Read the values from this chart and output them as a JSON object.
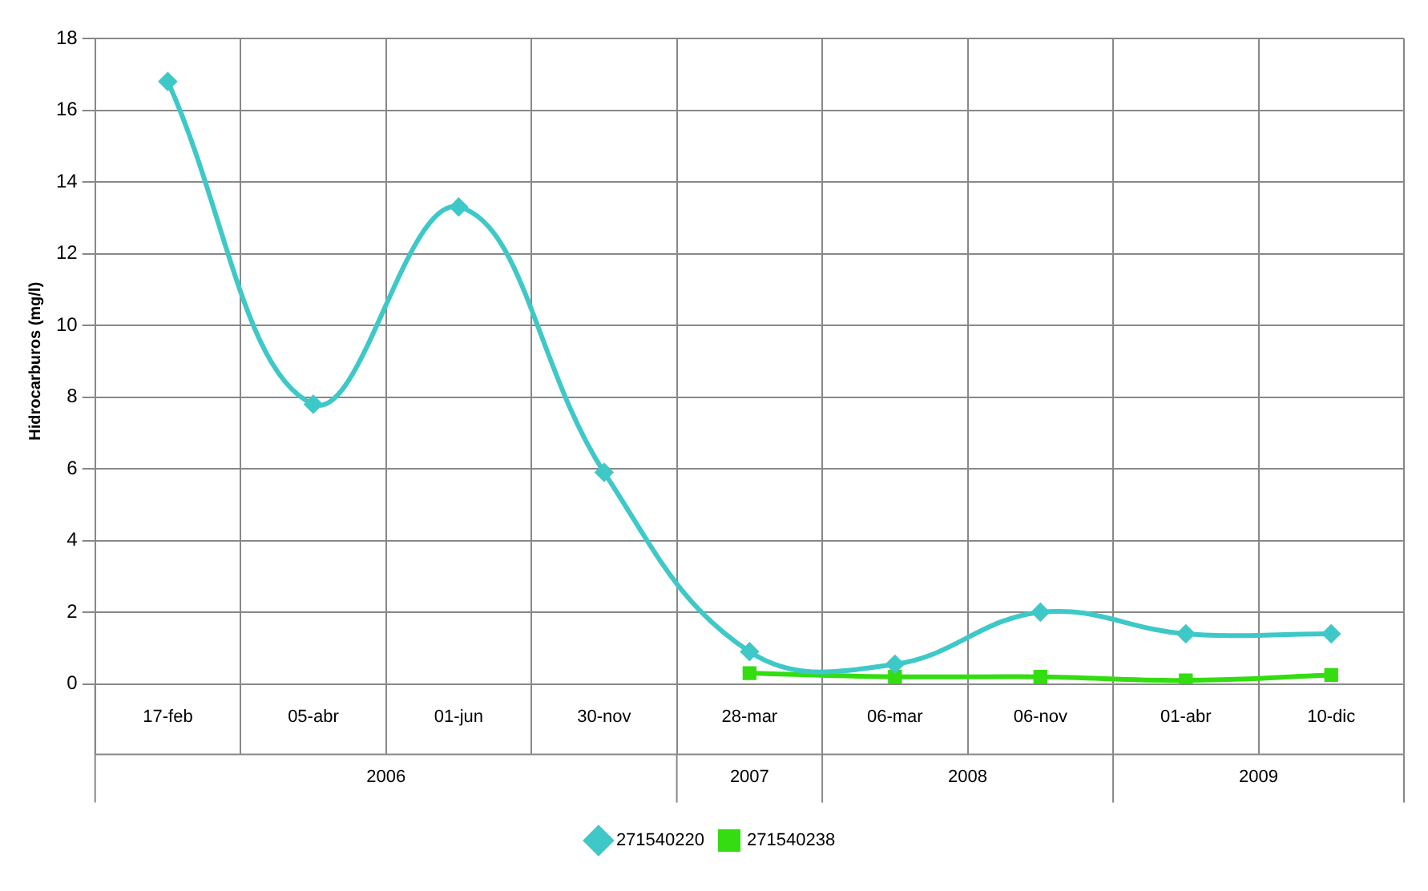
{
  "chart_data": {
    "type": "line",
    "ylabel": "Hidrocarburos (mg/l)",
    "categories": [
      "17-feb",
      "05-abr",
      "01-jun",
      "30-nov",
      "28-mar",
      "06-mar",
      "06-nov",
      "01-abr",
      "10-dic"
    ],
    "series": [
      {
        "name": "271540220",
        "color": "#3ec8c8",
        "marker": "diamond",
        "values": [
          16.8,
          7.8,
          13.3,
          5.9,
          0.9,
          0.55,
          2.0,
          1.4,
          1.4
        ]
      },
      {
        "name": "271540238",
        "color": "#33dd11",
        "marker": "square",
        "values": [
          null,
          null,
          null,
          null,
          0.3,
          0.2,
          0.2,
          0.1,
          0.25
        ]
      }
    ],
    "annotations": [
      "2006",
      "2007",
      "2008",
      "2009"
    ],
    "ylim": [
      0,
      18
    ],
    "yticks": [
      0,
      2,
      4,
      6,
      8,
      10,
      12,
      14,
      16,
      18
    ],
    "grid": true,
    "legend": "bottom",
    "line_style": "solid"
  }
}
